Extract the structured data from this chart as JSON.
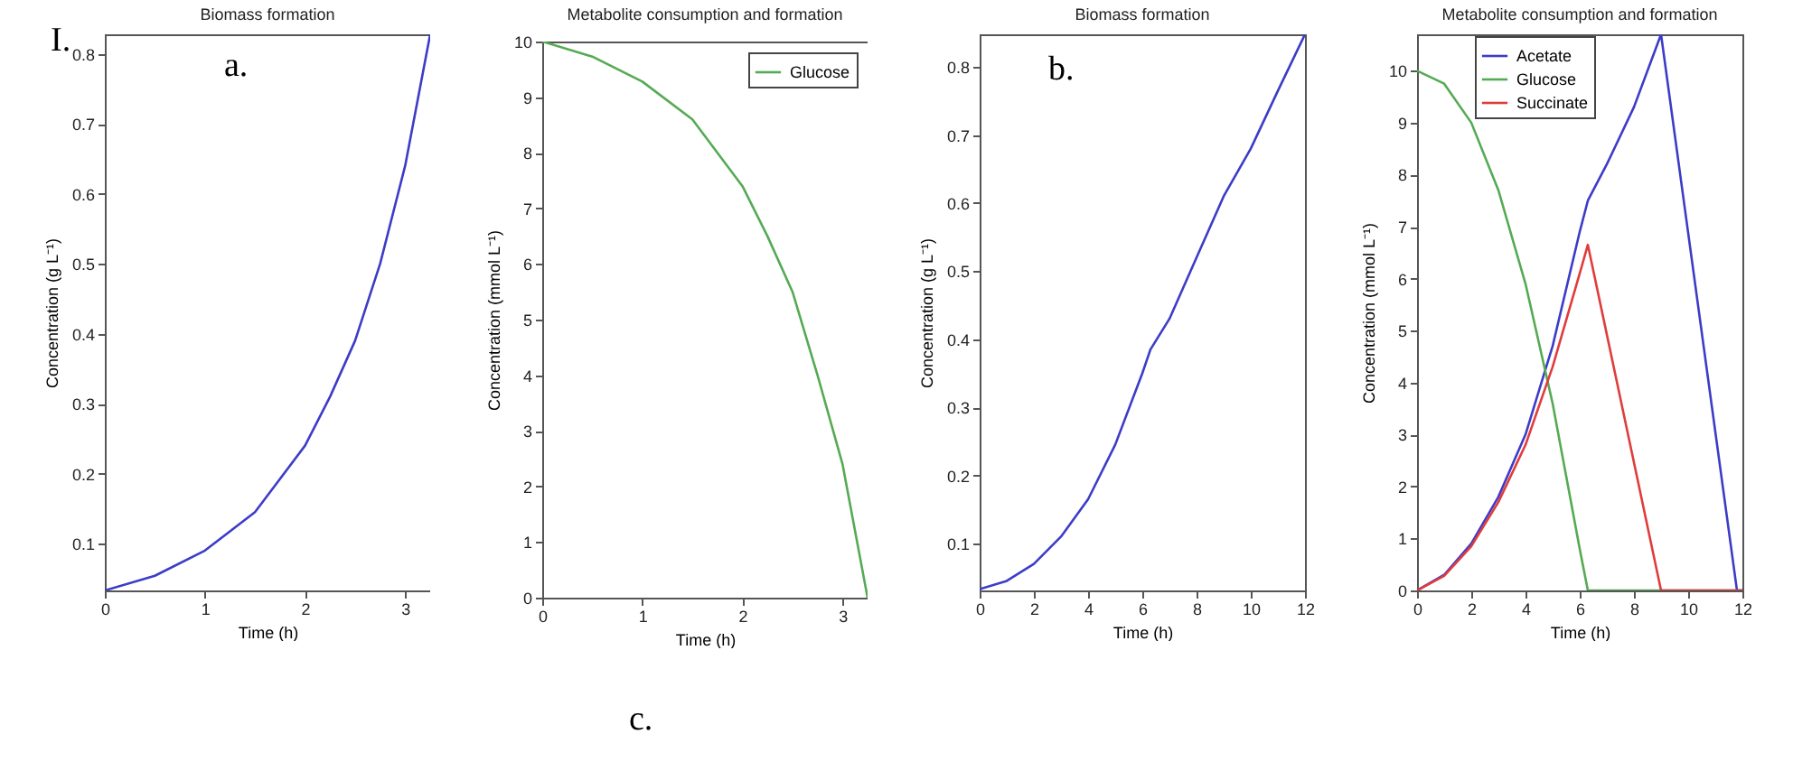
{
  "chart_data": [
    {
      "type": "line",
      "title": "Biomass formation",
      "xlabel": "Time (h)",
      "ylabel": "Concentration (g L⁻¹)",
      "annotations": [
        "I.",
        "a."
      ],
      "xlim": [
        0,
        3.25
      ],
      "xticks": [
        0,
        1,
        2,
        3
      ],
      "ylim": [
        0.033,
        0.828
      ],
      "yticks": [
        0.1,
        0.2,
        0.3,
        0.4,
        0.5,
        0.6,
        0.7,
        0.8
      ],
      "grid": false,
      "legend": false,
      "series": [
        {
          "color": "#3c3cc8",
          "x": [
            0,
            0.5,
            1,
            1.5,
            2,
            2.25,
            2.5,
            2.75,
            3,
            3.25
          ],
          "values": [
            0.033,
            0.054,
            0.09,
            0.145,
            0.24,
            0.31,
            0.39,
            0.5,
            0.64,
            0.828
          ]
        }
      ]
    },
    {
      "type": "line",
      "title": "Metabolite consumption and formation",
      "xlabel": "Time (h)",
      "ylabel": "Concentration (mmol L⁻¹)",
      "annotations": [
        "c."
      ],
      "xlim": [
        0,
        3.25
      ],
      "xticks": [
        0,
        1,
        2,
        3
      ],
      "ylim": [
        0,
        10
      ],
      "yticks": [
        0,
        1,
        2,
        3,
        4,
        5,
        6,
        7,
        8,
        9,
        10
      ],
      "grid": false,
      "legend": "top right",
      "series": [
        {
          "name": "Glucose",
          "color": "#55aa55",
          "x": [
            0,
            0.5,
            1,
            1.5,
            2,
            2.25,
            2.5,
            2.75,
            3,
            3.25
          ],
          "values": [
            10,
            9.73,
            9.28,
            8.6,
            7.4,
            6.5,
            5.5,
            4.0,
            2.4,
            0
          ]
        }
      ]
    },
    {
      "type": "line",
      "title": "Biomass formation",
      "xlabel": "Time (h)",
      "ylabel": "Concentration (g L⁻¹)",
      "annotations": [
        "b."
      ],
      "xlim": [
        0,
        12
      ],
      "xticks": [
        0,
        2,
        4,
        6,
        8,
        10,
        12
      ],
      "ylim": [
        0.031,
        0.848
      ],
      "yticks": [
        0.1,
        0.2,
        0.3,
        0.4,
        0.5,
        0.6,
        0.7,
        0.8
      ],
      "grid": false,
      "legend": false,
      "series": [
        {
          "color": "#3c3cc8",
          "x": [
            0,
            1,
            2,
            3,
            4,
            5,
            6,
            6.3,
            7,
            8,
            9,
            10,
            11,
            12
          ],
          "values": [
            0.033,
            0.045,
            0.07,
            0.11,
            0.165,
            0.245,
            0.35,
            0.385,
            0.43,
            0.52,
            0.61,
            0.68,
            0.765,
            0.848
          ]
        }
      ]
    },
    {
      "type": "line",
      "title": "Metabolite consumption and formation",
      "xlabel": "Time (h)",
      "ylabel": "Concentration (mmol L⁻¹)",
      "xlim": [
        0,
        12
      ],
      "xticks": [
        0,
        2,
        4,
        6,
        8,
        10,
        12
      ],
      "ylim": [
        0,
        10.7
      ],
      "yticks": [
        0,
        1,
        2,
        3,
        4,
        5,
        6,
        7,
        8,
        9,
        10
      ],
      "grid": false,
      "legend": "top",
      "series": [
        {
          "name": "Acetate",
          "color": "#3c3cc8",
          "x": [
            0,
            1,
            2,
            3,
            4,
            5,
            6,
            6.3,
            7,
            8,
            9,
            11.8,
            12
          ],
          "values": [
            0,
            0.3,
            0.9,
            1.8,
            3.0,
            4.7,
            6.9,
            7.5,
            8.2,
            9.3,
            10.7,
            0,
            0
          ]
        },
        {
          "name": "Glucose",
          "color": "#55aa55",
          "x": [
            0,
            1,
            2,
            3,
            4,
            5,
            5.5,
            6,
            6.3,
            12
          ],
          "values": [
            10,
            9.75,
            9.0,
            7.7,
            5.9,
            3.6,
            2.2,
            0.8,
            0,
            0
          ]
        },
        {
          "name": "Succinate",
          "color": "#e03c3c",
          "x": [
            0,
            1,
            2,
            3,
            4,
            5,
            6,
            6.3,
            9,
            12
          ],
          "values": [
            0,
            0.28,
            0.85,
            1.7,
            2.8,
            4.3,
            6.1,
            6.65,
            0,
            0
          ]
        }
      ]
    }
  ]
}
